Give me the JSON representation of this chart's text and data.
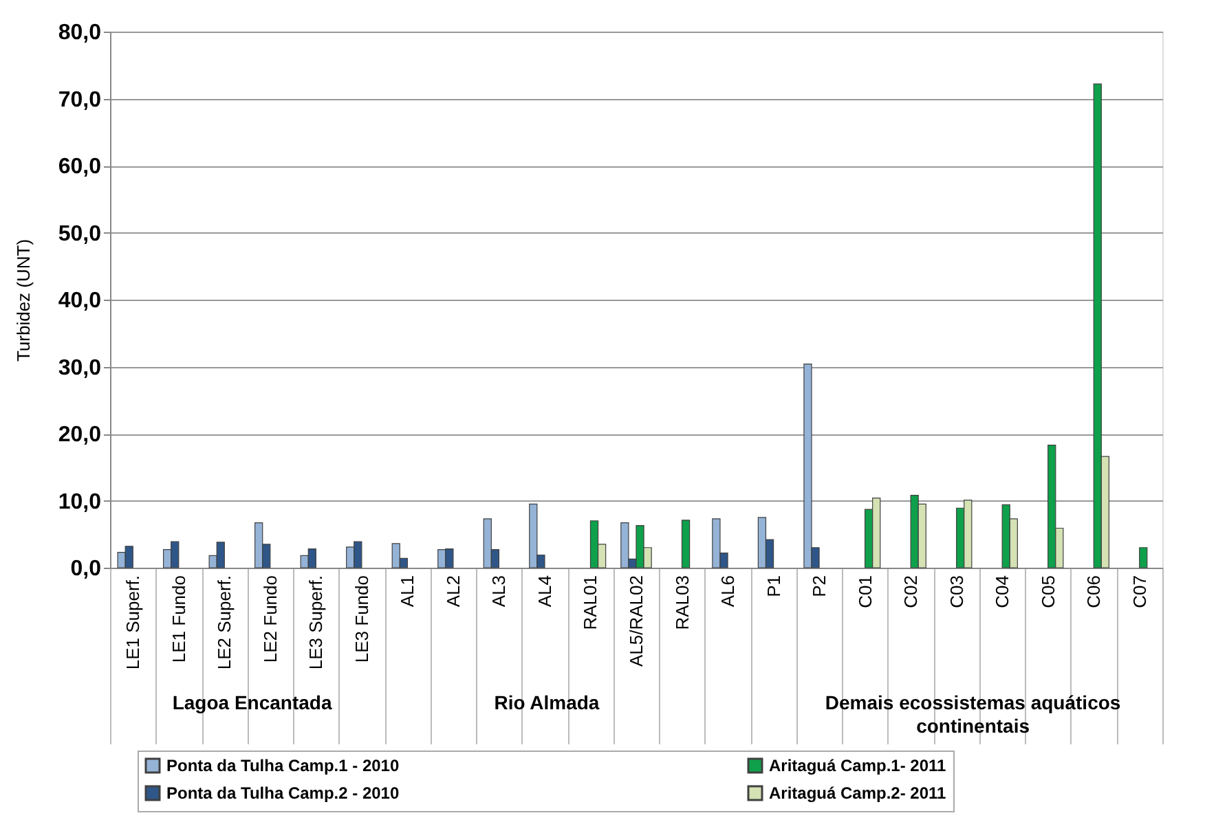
{
  "chart_data": {
    "type": "bar",
    "ylabel": "Turbidez (UNT)",
    "categories": [
      "LE1 Superf.",
      "LE1 Fundo",
      "LE2 Superf.",
      "LE2 Fundo",
      "LE3 Superf.",
      "LE3 Fundo",
      "AL1",
      "AL2",
      "AL3",
      "AL4",
      "RAL01",
      "AL5/RAL02",
      "RAL03",
      "AL6",
      "P1",
      "P2",
      "C01",
      "C02",
      "C03",
      "C04",
      "C05",
      "C06",
      "C07"
    ],
    "series": [
      {
        "name": "Ponta da Tulha Camp.1 - 2010",
        "color": "#95b3d7",
        "values": [
          2.3,
          2.7,
          1.8,
          6.7,
          1.8,
          3.1,
          3.6,
          2.7,
          7.3,
          9.5,
          null,
          6.7,
          null,
          7.3,
          7.5,
          30.4,
          null,
          null,
          null,
          null,
          null,
          null,
          null
        ]
      },
      {
        "name": "Ponta da Tulha Camp.2 - 2010",
        "color": "#2f5688",
        "values": [
          3.2,
          3.9,
          3.8,
          3.5,
          2.8,
          3.9,
          1.4,
          2.8,
          2.7,
          1.9,
          null,
          1.3,
          null,
          2.2,
          4.2,
          3.0,
          null,
          null,
          null,
          null,
          null,
          null,
          null
        ]
      },
      {
        "name": "Aritaguá Camp.1- 2011",
        "color": "#0fa04b",
        "values": [
          null,
          null,
          null,
          null,
          null,
          null,
          null,
          null,
          null,
          null,
          7.0,
          6.3,
          7.1,
          null,
          null,
          null,
          8.7,
          10.8,
          8.9,
          9.4,
          18.3,
          72.2,
          3.0
        ]
      },
      {
        "name": "Aritaguá Camp.2- 2011",
        "color": "#d4e2b4",
        "values": [
          null,
          null,
          null,
          null,
          null,
          null,
          null,
          null,
          null,
          null,
          3.5,
          3.0,
          null,
          null,
          null,
          null,
          10.4,
          9.5,
          10.1,
          7.3,
          5.9,
          16.6,
          null
        ]
      }
    ],
    "ylim": [
      0,
      80
    ],
    "yticks": [
      {
        "value": 0,
        "label": "0,0"
      },
      {
        "value": 10,
        "label": "10,0"
      },
      {
        "value": 20,
        "label": "20,0"
      },
      {
        "value": 30,
        "label": "30,0"
      },
      {
        "value": 40,
        "label": "40,0"
      },
      {
        "value": 50,
        "label": "50,0"
      },
      {
        "value": 60,
        "label": "60,0"
      },
      {
        "value": 70,
        "label": "70,0"
      },
      {
        "value": 80,
        "label": "80,0"
      }
    ],
    "grid": "y",
    "legend": "bottom",
    "annotations": [
      "Lagoa Encantada",
      "Rio Almada",
      "Demais ecossistemas aquáticos continentais"
    ]
  }
}
